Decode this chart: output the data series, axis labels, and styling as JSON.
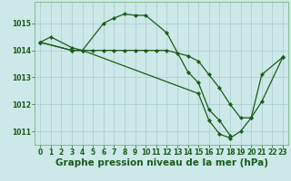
{
  "background_color": "#cce8e8",
  "grid_color": "#aacccc",
  "line_color": "#1a5c1a",
  "xlabel": "Graphe pression niveau de la mer (hPa)",
  "xlabel_fontsize": 7.5,
  "tick_fontsize": 5.5,
  "ylim": [
    1010.5,
    1015.8
  ],
  "xlim": [
    -0.5,
    23.5
  ],
  "yticks": [
    1011,
    1012,
    1013,
    1014,
    1015
  ],
  "xticks": [
    0,
    1,
    2,
    3,
    4,
    5,
    6,
    7,
    8,
    9,
    10,
    11,
    12,
    13,
    14,
    15,
    16,
    17,
    18,
    19,
    20,
    21,
    22,
    23
  ],
  "s1_x": [
    0,
    1,
    3,
    4,
    6,
    7,
    8,
    9,
    10,
    12,
    14,
    15,
    16,
    17,
    18
  ],
  "s1_y": [
    1014.3,
    1014.5,
    1014.1,
    1014.0,
    1015.0,
    1015.2,
    1015.35,
    1015.3,
    1015.3,
    1014.65,
    1013.2,
    1012.8,
    1011.8,
    1011.4,
    1010.85
  ],
  "s2_x": [
    0,
    3,
    4,
    5,
    6,
    7,
    8,
    9,
    10,
    11,
    12,
    13,
    14,
    15,
    16,
    17,
    18,
    19,
    20,
    21,
    23
  ],
  "s2_y": [
    1014.3,
    1014.0,
    1014.0,
    1014.0,
    1014.0,
    1014.0,
    1014.0,
    1014.0,
    1014.0,
    1014.0,
    1014.0,
    1013.9,
    1013.8,
    1013.6,
    1013.1,
    1012.6,
    1012.0,
    1011.5,
    1011.5,
    1012.1,
    1013.75
  ],
  "s3_x": [
    0,
    3,
    4,
    15,
    16,
    17,
    18,
    19,
    20,
    21,
    23
  ],
  "s3_y": [
    1014.3,
    1014.0,
    1014.0,
    1012.4,
    1011.4,
    1010.9,
    1010.75,
    1011.0,
    1011.5,
    1013.1,
    1013.75
  ],
  "marker": "D",
  "markersize": 2.2,
  "linewidth": 0.9
}
